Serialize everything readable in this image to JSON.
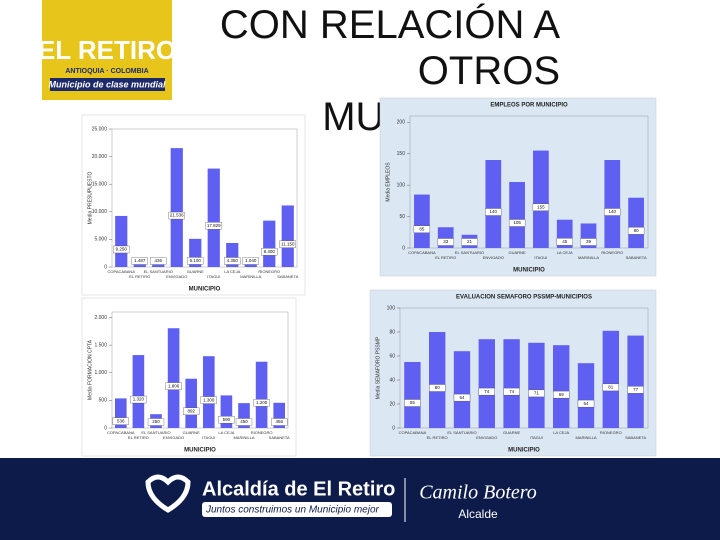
{
  "logo": {
    "name": "EL RETIRO",
    "region": "ANTIOQUIA · COLOMBIA",
    "slogan": "Municipio de clase mundial"
  },
  "slide_title": "CON RELACIÓN A OTROS MUNICIPIOS",
  "footer": {
    "org": "Alcaldía de El Retiro",
    "motto": "Juntos construimos un Municipio mejor",
    "mayor": "Camilo Botero",
    "mayor_role": "Alcalde"
  },
  "chart_data": [
    {
      "type": "bar",
      "ylabel": "Media PRESUPUESTO",
      "xlabel": "MUNICIPIO",
      "color": "#5f5ff2",
      "categories": [
        "COPACABANA",
        "EL RETIRO",
        "EL SANTUARIO",
        "ENVIGADO",
        "GUARNE",
        "ITAGUI",
        "LA CEJA",
        "MARINILLA",
        "RIONEGRO",
        "SABANETA"
      ],
      "values": [
        9250,
        1487,
        436,
        21536,
        5100,
        17829,
        4350,
        1040,
        8400,
        11150
      ],
      "value_labels": [
        "9.250",
        "1.487",
        "436",
        "21.536",
        "5.100",
        "17.829",
        "4.350",
        "1.040",
        "8.400",
        "11.150"
      ],
      "ylim": [
        0,
        25000
      ],
      "yticks": [
        0,
        {
          "value": 5000,
          "label": "5.000"
        },
        {
          "value": 10000,
          "label": "10.000"
        },
        {
          "value": 15000,
          "label": "15.000"
        },
        {
          "value": 20000,
          "label": "20.000"
        },
        {
          "value": 25000,
          "label": "25.000"
        }
      ]
    },
    {
      "type": "bar",
      "title": "EMPLEOS POR MUNICIPIO",
      "ylabel": "Media EMPLEOS",
      "xlabel": "MUNICIPIO",
      "color": "#5f5ff2",
      "categories": [
        "COPACABANA",
        "EL RETIRO",
        "EL SANTUARIO",
        "ENVIGADO",
        "GUARNE",
        "ITAGUI",
        "LA CEJA",
        "MARINILLA",
        "RIONEGRO",
        "SABANETA"
      ],
      "values": [
        85,
        33,
        21,
        140,
        105,
        155,
        45,
        39,
        140,
        80
      ],
      "ylim": [
        0,
        210
      ],
      "yticks": [
        0,
        50,
        100,
        150,
        200
      ]
    },
    {
      "type": "bar",
      "ylabel": "Media FORMACION CPTA",
      "xlabel": "MUNICIPIO",
      "color": "#5f5ff2",
      "categories": [
        "COPACABANA",
        "EL RETIRO",
        "EL SANTUARIO",
        "ENVIGADO",
        "GUARNE",
        "ITAGUI",
        "LA CEJA",
        "MARINILLA",
        "RIONEGRO",
        "SABANETA"
      ],
      "values": [
        536,
        1320,
        250,
        1806,
        892,
        1300,
        590,
        450,
        1200,
        456
      ],
      "value_labels": [
        "536",
        "1.320",
        "250",
        "1.806",
        "892",
        "1.300",
        "590",
        "450",
        "1.200",
        "456"
      ],
      "ylim": [
        0,
        2100
      ],
      "yticks": [
        0,
        {
          "value": 500,
          "label": "500"
        },
        {
          "value": 1000,
          "label": "1.000"
        },
        {
          "value": 1500,
          "label": "1.500"
        },
        {
          "value": 2000,
          "label": "2.000"
        }
      ]
    },
    {
      "type": "bar",
      "title": "EVALUACION SEMAFORO PSSMP-MUNICIPIOS",
      "ylabel": "Media SEMAFORO PSSMP",
      "xlabel": "MUNICIPIO",
      "color": "#5f5ff2",
      "categories": [
        "COPACABANA",
        "EL RETIRO",
        "EL SANTUARIO",
        "ENVIGADO",
        "GUARNE",
        "ITAGUI",
        "LA CEJA",
        "MARINILLA",
        "RIONEGRO",
        "SABANETA"
      ],
      "values": [
        55,
        80,
        64,
        74,
        74,
        71,
        69,
        54,
        81,
        77
      ],
      "ylim": [
        0,
        100
      ],
      "yticks": [
        0,
        20,
        40,
        60,
        80,
        100
      ]
    }
  ]
}
